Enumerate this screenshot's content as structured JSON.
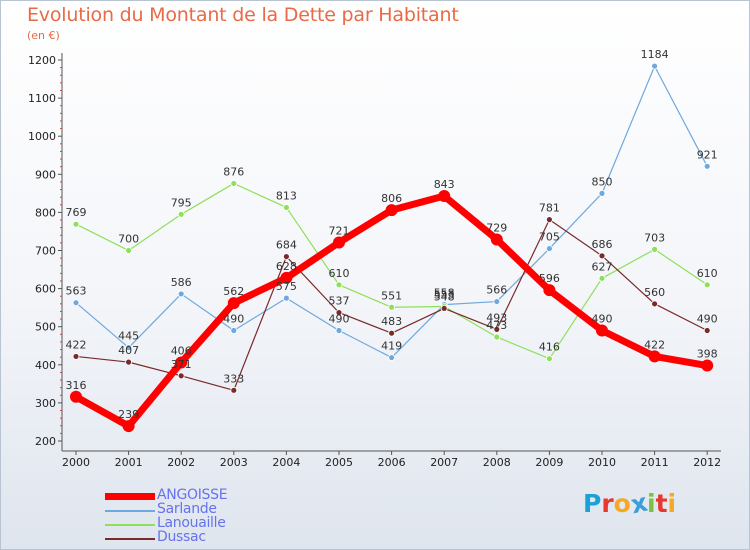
{
  "chart_data": {
    "type": "line",
    "title": "Evolution du Montant de la Dette par Habitant",
    "subtitle": "(en €)",
    "xlabel": "",
    "ylabel": "",
    "x": [
      "2000",
      "2001",
      "2002",
      "2003",
      "2004",
      "2005",
      "2006",
      "2007",
      "2008",
      "2009",
      "2010",
      "2011",
      "2012"
    ],
    "ylim": [
      200,
      1200
    ],
    "yticks": [
      "200",
      "300",
      "400",
      "500",
      "600",
      "700",
      "800",
      "900",
      "1000",
      "1100",
      "1200"
    ],
    "grid": false,
    "legend_position": "bottom-left",
    "series": [
      {
        "name": "ANGOISSE",
        "color": "#ff0000",
        "values": [
          316,
          239,
          406,
          562,
          628,
          721,
          806,
          843,
          729,
          596,
          490,
          422,
          398
        ]
      },
      {
        "name": "Sarlande",
        "color": "#6fa8dc",
        "values": [
          563,
          445,
          586,
          490,
          575,
          490,
          419,
          558,
          566,
          705,
          850,
          1184,
          921
        ]
      },
      {
        "name": "Lanouaille",
        "color": "#8ee05a",
        "values": [
          769,
          700,
          795,
          876,
          813,
          610,
          551,
          553,
          473,
          416,
          627,
          703,
          610
        ]
      },
      {
        "name": "Dussac",
        "color": "#7a2a2a",
        "values": [
          422,
          407,
          371,
          333,
          684,
          537,
          483,
          548,
          493,
          781,
          686,
          560,
          490
        ]
      }
    ]
  },
  "brand": {
    "letters": [
      "P",
      "r",
      "o",
      "x",
      "i",
      "t",
      "i"
    ],
    "colors": [
      "#1aa1d6",
      "#e8372e",
      "#f7a823",
      "#3a9fd8",
      "#7ac143",
      "#e8372e",
      "#f7a823"
    ]
  }
}
